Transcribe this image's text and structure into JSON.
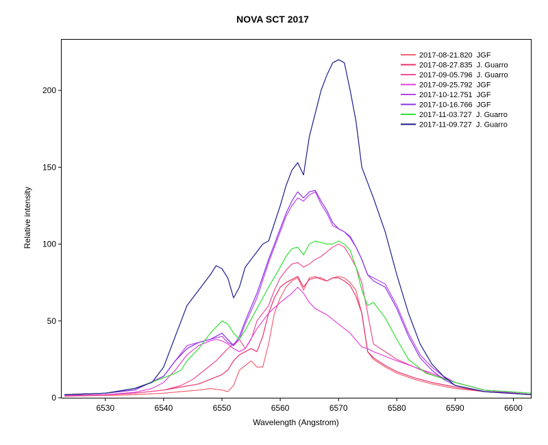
{
  "chart_data": {
    "type": "line",
    "title": "NOVA SCT 2017",
    "xlabel": "Wavelength (Angstrom)",
    "ylabel": "Relative intensity",
    "xlim": [
      6522.5,
      6603
    ],
    "ylim": [
      0,
      233
    ],
    "xticks": [
      6530,
      6540,
      6550,
      6560,
      6570,
      6580,
      6590,
      6600
    ],
    "yticks": [
      0,
      50,
      100,
      150,
      200
    ],
    "grid": false,
    "legend": "top-right",
    "series": [
      {
        "name": "2017-08-21.820  JGF",
        "color": "#f06070",
        "x": [
          6523,
          6530,
          6535,
          6540,
          6543,
          6546,
          6548,
          6550,
          6551,
          6552,
          6553,
          6555,
          6556,
          6557,
          6558,
          6559,
          6560,
          6561,
          6562,
          6563,
          6564,
          6565,
          6566,
          6567,
          6568,
          6569,
          6570,
          6571,
          6572,
          6573,
          6574,
          6575,
          6576,
          6578,
          6580,
          6583,
          6586,
          6590,
          6595,
          6603
        ],
        "y": [
          1,
          1.5,
          2,
          3,
          4,
          5,
          6,
          5,
          4,
          8,
          18,
          24,
          20,
          20,
          35,
          55,
          65,
          72,
          76,
          78,
          70,
          78,
          79,
          77,
          76,
          78,
          79,
          78,
          75,
          70,
          55,
          30,
          25,
          20,
          16,
          12,
          9,
          6,
          4,
          2
        ]
      },
      {
        "name": "2017-08-27.835  J. Guarro",
        "color": "#e8306a",
        "x": [
          6523,
          6530,
          6535,
          6540,
          6543,
          6546,
          6548,
          6550,
          6551,
          6552,
          6553,
          6555,
          6556,
          6557,
          6558,
          6559,
          6560,
          6561,
          6562,
          6563,
          6564,
          6565,
          6566,
          6567,
          6568,
          6569,
          6570,
          6571,
          6572,
          6573,
          6574,
          6575,
          6576,
          6578,
          6580,
          6583,
          6586,
          6590,
          6595,
          6603
        ],
        "y": [
          1.5,
          2,
          3,
          5,
          7,
          9,
          12,
          15,
          18,
          24,
          28,
          32,
          30,
          40,
          55,
          65,
          72,
          75,
          77,
          79,
          72,
          77,
          78,
          78,
          76,
          78,
          78,
          76,
          73,
          66,
          55,
          30,
          26,
          21,
          17,
          13,
          10,
          7,
          4,
          2
        ]
      },
      {
        "name": "2017-09-05.796  J. Guarro",
        "color": "#ee4a90",
        "x": [
          6523,
          6530,
          6535,
          6540,
          6543,
          6545,
          6547,
          6549,
          6550,
          6551,
          6552,
          6553,
          6554,
          6555,
          6556,
          6558,
          6559,
          6560,
          6561,
          6562,
          6563,
          6564,
          6565,
          6566,
          6567,
          6568,
          6569,
          6570,
          6571,
          6572,
          6573,
          6574,
          6575,
          6576,
          6578,
          6580,
          6583,
          6586,
          6590,
          6595,
          6603
        ],
        "y": [
          1,
          2,
          3,
          5,
          8,
          12,
          18,
          24,
          28,
          32,
          35,
          38,
          32,
          38,
          50,
          60,
          70,
          78,
          83,
          87,
          88,
          85,
          87,
          90,
          92,
          95,
          98,
          100,
          98,
          92,
          85,
          75,
          55,
          35,
          30,
          25,
          20,
          15,
          10,
          5,
          2
        ]
      },
      {
        "name": "2017-09-25.792  JGF",
        "color": "#e040d8",
        "x": [
          6523,
          6530,
          6535,
          6538,
          6540,
          6542,
          6544,
          6546,
          6548,
          6549,
          6550,
          6551,
          6552,
          6553,
          6554,
          6556,
          6558,
          6560,
          6562,
          6563,
          6564,
          6565,
          6566,
          6568,
          6570,
          6572,
          6574,
          6575,
          6576,
          6578,
          6580,
          6583,
          6586,
          6590,
          6595,
          6603
        ],
        "y": [
          1.5,
          2,
          3.5,
          6,
          10,
          18,
          28,
          34,
          37,
          38,
          37,
          35,
          32,
          30,
          32,
          45,
          55,
          62,
          68,
          72,
          68,
          62,
          58,
          54,
          48,
          42,
          33,
          32,
          30,
          27,
          24,
          20,
          16,
          10,
          5,
          2
        ]
      },
      {
        "name": "2017-10-12.751  JGF",
        "color": "#b840e8",
        "x": [
          6523,
          6530,
          6535,
          6540,
          6542,
          6544,
          6546,
          6548,
          6550,
          6551,
          6552,
          6553,
          6554,
          6556,
          6558,
          6560,
          6561,
          6562,
          6563,
          6564,
          6565,
          6566,
          6567,
          6568,
          6569,
          6570,
          6571,
          6572,
          6573,
          6574,
          6575,
          6576,
          6578,
          6580,
          6582,
          6584,
          6586,
          6588,
          6590,
          6595,
          6603
        ],
        "y": [
          2,
          3,
          5,
          14,
          24,
          34,
          36,
          38,
          40,
          36,
          34,
          38,
          48,
          65,
          88,
          108,
          118,
          125,
          130,
          128,
          132,
          134,
          126,
          120,
          112,
          110,
          108,
          104,
          98,
          90,
          80,
          78,
          74,
          60,
          42,
          28,
          20,
          14,
          10,
          5,
          3
        ]
      },
      {
        "name": "2017-10-16.766  JGF",
        "color": "#8830e8",
        "x": [
          6523,
          6530,
          6535,
          6540,
          6542,
          6544,
          6546,
          6548,
          6550,
          6551,
          6552,
          6553,
          6554,
          6556,
          6558,
          6560,
          6561,
          6562,
          6563,
          6564,
          6565,
          6566,
          6567,
          6568,
          6569,
          6570,
          6571,
          6572,
          6573,
          6574,
          6575,
          6576,
          6578,
          6580,
          6582,
          6584,
          6586,
          6588,
          6590,
          6595,
          6603
        ],
        "y": [
          2,
          3,
          5,
          14,
          24,
          32,
          36,
          38,
          42,
          38,
          34,
          40,
          50,
          68,
          90,
          110,
          120,
          128,
          134,
          130,
          134,
          135,
          128,
          122,
          114,
          110,
          108,
          105,
          98,
          90,
          80,
          76,
          72,
          58,
          40,
          26,
          18,
          12,
          8,
          4,
          2
        ]
      },
      {
        "name": "2017-11-03.727  J. Guarro",
        "color": "#30e030",
        "x": [
          6523,
          6530,
          6535,
          6540,
          6542,
          6543,
          6544,
          6545,
          6546,
          6548,
          6550,
          6551,
          6552,
          6553,
          6554,
          6556,
          6558,
          6560,
          6561,
          6562,
          6563,
          6564,
          6565,
          6566,
          6567,
          6568,
          6569,
          6570,
          6571,
          6572,
          6573,
          6574,
          6575,
          6576,
          6578,
          6580,
          6582,
          6585,
          6590,
          6595,
          6603
        ],
        "y": [
          2,
          3,
          6,
          13,
          16,
          18,
          24,
          28,
          32,
          42,
          50,
          48,
          42,
          38,
          44,
          58,
          72,
          85,
          92,
          97,
          98,
          93,
          100,
          102,
          101,
          100,
          100,
          102,
          100,
          96,
          85,
          70,
          60,
          62,
          52,
          38,
          25,
          16,
          10,
          5,
          3
        ]
      },
      {
        "name": "2017-11-09.727  J. Guarro",
        "color": "#1a1a8c",
        "x": [
          6523,
          6530,
          6535,
          6538,
          6540,
          6542,
          6544,
          6546,
          6548,
          6549,
          6550,
          6551,
          6552,
          6553,
          6554,
          6556,
          6557,
          6558,
          6560,
          6561,
          6562,
          6563,
          6564,
          6565,
          6566,
          6567,
          6568,
          6569,
          6570,
          6571,
          6572,
          6573,
          6574,
          6575,
          6576,
          6578,
          6580,
          6582,
          6584,
          6586,
          6588,
          6590,
          6595,
          6603
        ],
        "y": [
          2,
          3,
          6,
          10,
          20,
          40,
          60,
          70,
          80,
          86,
          84,
          78,
          65,
          72,
          85,
          95,
          100,
          102,
          125,
          138,
          148,
          153,
          145,
          170,
          185,
          200,
          210,
          218,
          220,
          218,
          200,
          180,
          150,
          140,
          130,
          108,
          80,
          55,
          35,
          22,
          14,
          8,
          4,
          2
        ]
      }
    ]
  }
}
